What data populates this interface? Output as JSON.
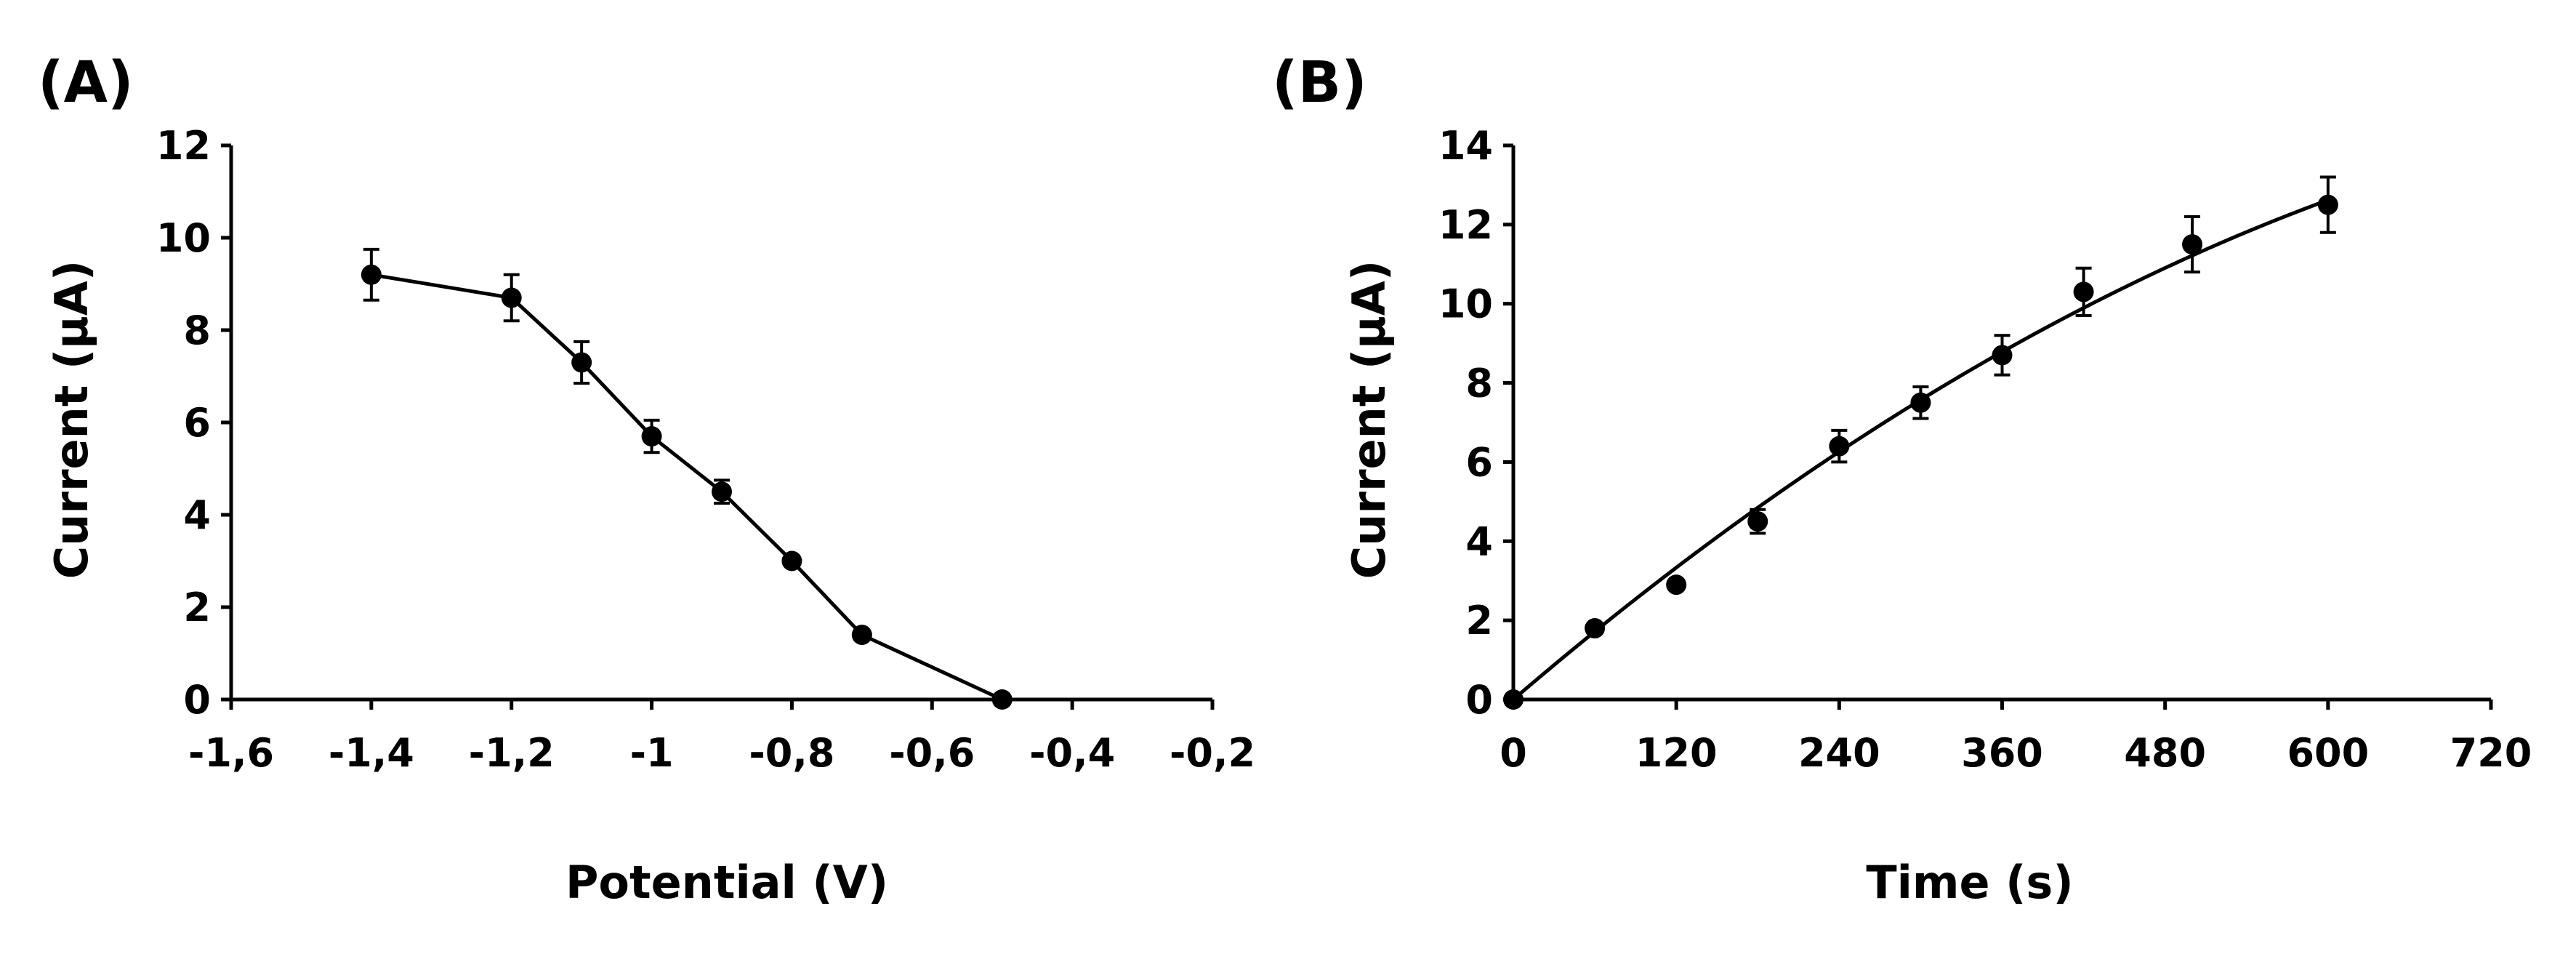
{
  "chart_data": [
    {
      "type": "line",
      "panel_label": "(A)",
      "title": "",
      "xlabel": "Potential (V)",
      "ylabel": "Current (µA)",
      "xlim": [
        -1.6,
        -0.2
      ],
      "ylim": [
        0,
        12
      ],
      "xticks": [
        -1.6,
        -1.4,
        -1.2,
        -1.0,
        -0.8,
        -0.6,
        -0.4,
        -0.2
      ],
      "xtick_labels": [
        "-1,6",
        "-1,4",
        "-1,2",
        "-1",
        "-0,8",
        "-0,6",
        "-0,4",
        "-0,2"
      ],
      "yticks": [
        0,
        2,
        4,
        6,
        8,
        10,
        12
      ],
      "ytick_labels": [
        "0",
        "2",
        "4",
        "6",
        "8",
        "10",
        "12"
      ],
      "grid": false,
      "connect_points": true,
      "series": [
        {
          "name": "current",
          "x": [
            -1.4,
            -1.2,
            -1.1,
            -1.0,
            -0.9,
            -0.8,
            -0.7,
            -0.5
          ],
          "y": [
            9.2,
            8.7,
            7.3,
            5.7,
            4.5,
            3.0,
            1.4,
            0.0
          ],
          "err": [
            0.55,
            0.5,
            0.45,
            0.35,
            0.25,
            0.1,
            0.1,
            0.05
          ]
        }
      ]
    },
    {
      "type": "scatter",
      "panel_label": "(B)",
      "title": "",
      "xlabel": "Time (s)",
      "ylabel": "Current (µA)",
      "xlim": [
        0,
        720
      ],
      "ylim": [
        0,
        14
      ],
      "xticks": [
        0,
        120,
        240,
        360,
        480,
        600,
        720
      ],
      "xtick_labels": [
        "0",
        "120",
        "240",
        "360",
        "480",
        "600",
        "720"
      ],
      "yticks": [
        0,
        2,
        4,
        6,
        8,
        10,
        12,
        14
      ],
      "ytick_labels": [
        "0",
        "2",
        "4",
        "6",
        "8",
        "10",
        "12",
        "14"
      ],
      "grid": false,
      "connect_points": false,
      "series": [
        {
          "name": "current",
          "x": [
            0,
            60,
            120,
            180,
            240,
            300,
            360,
            420,
            500,
            600
          ],
          "y": [
            0.0,
            1.8,
            2.9,
            4.5,
            6.4,
            7.5,
            8.7,
            10.3,
            11.5,
            12.5
          ],
          "err": [
            0.05,
            0.1,
            0.1,
            0.3,
            0.4,
            0.4,
            0.5,
            0.6,
            0.7,
            0.7
          ]
        }
      ],
      "trendline": {
        "type": "polynomial",
        "coefficients": [
          0,
          0.02945,
          -1.403e-05
        ]
      }
    }
  ]
}
